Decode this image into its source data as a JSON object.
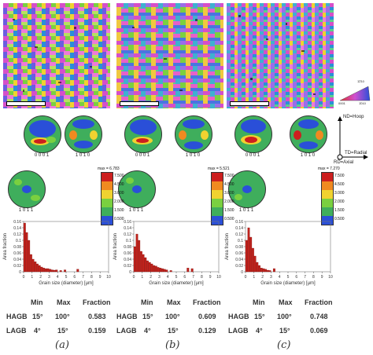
{
  "panels": [
    {
      "caption": "(a)",
      "pole_labels": [
        "0 0 0 1",
        "1 0 1 0",
        "1 0 1 1"
      ],
      "legend_max": "max = 6.783",
      "legend_levels": [
        "7.500",
        "4.500",
        "3.000",
        "2.000",
        "1.500",
        "0.500"
      ],
      "table": {
        "HAGB": {
          "min": "15°",
          "max": "100°",
          "fraction": "0.583"
        },
        "LAGB": {
          "min": "4°",
          "max": "15°",
          "fraction": "0.159"
        }
      }
    },
    {
      "caption": "(b)",
      "pole_labels": [
        "0 0 0 1",
        "1 0 1 0",
        "1 0 1 1"
      ],
      "legend_max": "max = 5.521",
      "legend_levels": [
        "7.500",
        "4.500",
        "3.000",
        "2.000",
        "1.500",
        "0.500"
      ],
      "table": {
        "HAGB": {
          "min": "15°",
          "max": "100°",
          "fraction": "0.609"
        },
        "LAGB": {
          "min": "4°",
          "max": "15°",
          "fraction": "0.129"
        }
      }
    },
    {
      "caption": "(c)",
      "pole_labels": [
        "0 0 0 1",
        "1 0 1 0",
        "1 0 1 1"
      ],
      "legend_max": "max = 7.270",
      "legend_levels": [
        "7.500",
        "4.500",
        "3.000",
        "2.000",
        "1.500",
        "0.500"
      ],
      "table": {
        "HAGB": {
          "min": "15°",
          "max": "100°",
          "fraction": "0.748"
        },
        "LAGB": {
          "min": "4°",
          "max": "15°",
          "fraction": "0.069"
        }
      }
    }
  ],
  "table_header": {
    "min": "Min",
    "max": "Max",
    "fraction": "Fraction"
  },
  "row_labels": {
    "hagb": "HAGB",
    "lagb": "LAGB"
  },
  "ipf_key": {
    "corner_top": "1̄2̄10",
    "corner_left": "0001",
    "corner_right": "1̄010"
  },
  "axes_key": {
    "nd": "ND=Hoop",
    "td": "TD=Radial",
    "rd": "RD=Axial"
  },
  "legend_colors": [
    "#cc1f1f",
    "#f08a20",
    "#f0d230",
    "#7ad040",
    "#3fae5c",
    "#2a4fd8"
  ],
  "chart_data": [
    {
      "type": "bar",
      "xlabel": "Grain size (diameter) [µm]",
      "ylabel": "Area fraction",
      "xlim": [
        0,
        10
      ],
      "ylim": [
        0,
        0.16
      ],
      "xticks": [
        0,
        1,
        2,
        3,
        4,
        5,
        6,
        7,
        8,
        9,
        10
      ],
      "yticks": [
        0,
        0.02,
        0.04,
        0.06,
        0.08,
        0.1,
        0.12,
        0.14,
        0.16
      ],
      "bin_width": 0.25,
      "x": [
        0.25,
        0.5,
        0.75,
        1.0,
        1.25,
        1.5,
        1.75,
        2.0,
        2.25,
        2.5,
        2.75,
        3.0,
        3.25,
        3.5,
        3.75,
        4.0,
        4.5,
        5.0,
        6.5
      ],
      "values": [
        0.155,
        0.125,
        0.1,
        0.055,
        0.04,
        0.032,
        0.025,
        0.02,
        0.015,
        0.012,
        0.01,
        0.01,
        0.008,
        0.006,
        0.005,
        0.006,
        0.004,
        0.006,
        0.008
      ]
    },
    {
      "type": "bar",
      "xlabel": "Grain size (diameter) [µm]",
      "ylabel": "Area fraction",
      "xlim": [
        0,
        10
      ],
      "ylim": [
        0,
        0.16
      ],
      "xticks": [
        0,
        1,
        2,
        3,
        4,
        5,
        6,
        7,
        8,
        9,
        10
      ],
      "yticks": [
        0,
        0.02,
        0.04,
        0.06,
        0.08,
        0.1,
        0.12,
        0.14,
        0.16
      ],
      "bin_width": 0.25,
      "x": [
        0.25,
        0.5,
        0.75,
        1.0,
        1.25,
        1.5,
        1.75,
        2.0,
        2.25,
        2.5,
        2.75,
        3.0,
        3.25,
        3.5,
        3.75,
        4.0,
        4.5,
        6.5,
        7.0
      ],
      "values": [
        0.08,
        0.12,
        0.1,
        0.065,
        0.055,
        0.045,
        0.035,
        0.03,
        0.025,
        0.02,
        0.018,
        0.014,
        0.012,
        0.01,
        0.008,
        0.006,
        0.004,
        0.012,
        0.01
      ]
    },
    {
      "type": "bar",
      "xlabel": "Grain size (diameter) [µm]",
      "ylabel": "Area fraction",
      "xlim": [
        0,
        10
      ],
      "ylim": [
        0,
        0.16
      ],
      "xticks": [
        0,
        1,
        2,
        3,
        4,
        5,
        6,
        7,
        8,
        9,
        10
      ],
      "yticks": [
        0,
        0.02,
        0.04,
        0.06,
        0.08,
        0.1,
        0.12,
        0.14,
        0.16
      ],
      "bin_width": 0.25,
      "x": [
        0.25,
        0.5,
        0.75,
        1.0,
        1.25,
        1.5,
        1.75,
        2.0,
        2.25,
        2.5,
        2.75,
        3.0,
        3.5
      ],
      "values": [
        0.1,
        0.14,
        0.11,
        0.075,
        0.05,
        0.03,
        0.02,
        0.012,
        0.01,
        0.008,
        0.005,
        0.004,
        0.01
      ]
    }
  ]
}
